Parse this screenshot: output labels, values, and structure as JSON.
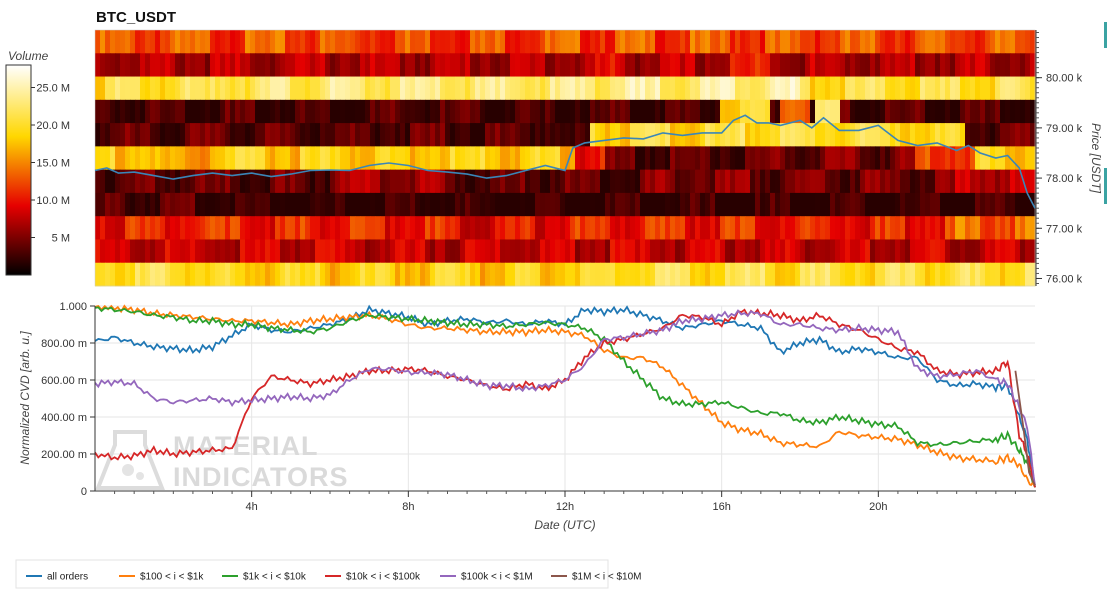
{
  "title": "BTC_USDT",
  "colors": {
    "grid": "#e6e6e6",
    "axis": "#333333",
    "price_line": "#3a86b8",
    "watermark": "#d9d9d9"
  },
  "watermark": {
    "line1": "MATERIAL",
    "line2": "INDICATORS"
  },
  "chart_data": [
    {
      "type": "heatmap",
      "title": "BTC_USDT",
      "colorbar": {
        "label": "Volume",
        "range": [
          0,
          28000000
        ],
        "ticks": [
          "5 M",
          "10.0 M",
          "15.0 M",
          "20.0 M",
          "25.0 M"
        ],
        "tick_values": [
          5000000,
          10000000,
          15000000,
          20000000,
          25000000
        ]
      },
      "y_right": {
        "label": "Price [USDT]",
        "range": [
          75850,
          80950
        ],
        "ticks": [
          "76.00 k",
          "77.00 k",
          "78.00 k",
          "79.00 k",
          "80.00 k"
        ],
        "tick_values": [
          76000,
          77000,
          78000,
          79000,
          80000
        ]
      },
      "x_range_hours": [
        0,
        24
      ],
      "rows": [
        {
          "price": 80800,
          "base": 14,
          "segments": [
            [
              0,
              24,
              14
            ]
          ]
        },
        {
          "price": 80500,
          "base": 8,
          "segments": [
            [
              12.8,
              13.5,
              10
            ],
            [
              16.2,
              17.5,
              11
            ]
          ]
        },
        {
          "price": 80000,
          "base": 22,
          "segments": [
            [
              3,
              12,
              24
            ],
            [
              12,
              16,
              25
            ],
            [
              16,
              18,
              26
            ]
          ]
        },
        {
          "price": 79500,
          "base": 3,
          "segments": [
            [
              11,
              12.3,
              2
            ],
            [
              16,
              17.2,
              20
            ],
            [
              17.5,
              18.2,
              16
            ],
            [
              18.4,
              19,
              22
            ]
          ]
        },
        {
          "price": 79000,
          "base": 4,
          "segments": [
            [
              11.8,
              12.6,
              2
            ],
            [
              12.6,
              16,
              21
            ],
            [
              16,
              21,
              22
            ],
            [
              21,
              22.2,
              20
            ]
          ]
        },
        {
          "price": 78500,
          "base": 20,
          "segments": [
            [
              1.5,
              3,
              17
            ],
            [
              12.3,
              13,
              12
            ],
            [
              13,
              17,
              4
            ],
            [
              17,
              21,
              5
            ],
            [
              21,
              22.5,
              14
            ]
          ]
        },
        {
          "price": 78000,
          "base": 4,
          "segments": [
            [
              6,
              9,
              7
            ],
            [
              12.5,
              14,
              3
            ],
            [
              14,
              17,
              6
            ],
            [
              17,
              22,
              5
            ],
            [
              22,
              24,
              9
            ]
          ]
        },
        {
          "price": 77500,
          "base": 2,
          "segments": [
            [
              0,
              4,
              3
            ],
            [
              11,
              12.5,
              1
            ],
            [
              12.5,
              18,
              2
            ]
          ]
        },
        {
          "price": 77000,
          "base": 12,
          "segments": [
            [
              9,
              12,
              11
            ],
            [
              22,
              24,
              15
            ]
          ]
        },
        {
          "price": 76500,
          "base": 9,
          "segments": [
            [
              0,
              24,
              9
            ]
          ]
        },
        {
          "price": 76000,
          "base": 18,
          "segments": [
            [
              0,
              3,
              22
            ],
            [
              3,
              12,
              20
            ],
            [
              12,
              24,
              22
            ]
          ]
        }
      ],
      "series": [
        {
          "x": [
            0,
            0.3,
            0.6,
            1,
            1.5,
            2,
            2.5,
            3,
            3.5,
            4,
            4.5,
            5,
            5.5,
            6,
            6.5,
            7,
            7.5,
            8,
            8.5,
            9,
            9.5,
            10,
            10.5,
            11,
            11.5,
            12,
            12.2,
            12.5,
            13,
            13.5,
            14,
            14.5,
            15,
            15.5,
            16,
            16.3,
            16.6,
            16.9,
            17.2,
            17.5,
            18,
            18.3,
            18.6,
            19,
            19.5,
            20,
            20.5,
            21,
            21.5,
            22,
            22.3,
            22.6,
            23,
            23.3,
            23.6,
            23.8,
            24
          ],
          "y": [
            78150,
            78200,
            78100,
            78120,
            78050,
            77980,
            78050,
            78100,
            78050,
            78100,
            78030,
            78080,
            78150,
            78160,
            78150,
            78250,
            78300,
            78250,
            78150,
            78120,
            78080,
            78000,
            78050,
            78150,
            78250,
            78150,
            78600,
            78700,
            78750,
            78800,
            78780,
            78900,
            78850,
            78900,
            78900,
            79150,
            79250,
            79100,
            79100,
            79050,
            79150,
            79000,
            79200,
            78950,
            78950,
            79050,
            78750,
            78650,
            78700,
            78550,
            78650,
            78500,
            78400,
            78450,
            78200,
            77700,
            77400
          ],
          "color": "#3a86b8"
        }
      ]
    },
    {
      "type": "line",
      "xlabel": "Date (UTC)",
      "ylabel": "Normalized CVD [arb. u.]",
      "x_range_hours": [
        0,
        24
      ],
      "xticks": [
        {
          "value": 4,
          "label": "4h"
        },
        {
          "value": 8,
          "label": "8h"
        },
        {
          "value": 12,
          "label": "12h"
        },
        {
          "value": 16,
          "label": "16h"
        },
        {
          "value": 20,
          "label": "20h"
        }
      ],
      "ylim": [
        0,
        1
      ],
      "yticks": [
        {
          "value": 0,
          "label": "0"
        },
        {
          "value": 0.2,
          "label": "200.00 m"
        },
        {
          "value": 0.4,
          "label": "400.00 m"
        },
        {
          "value": 0.6,
          "label": "600.00 m"
        },
        {
          "value": 0.8,
          "label": "800.00 m"
        },
        {
          "value": 1,
          "label": "1.000"
        }
      ],
      "legend_position": "bottom-left",
      "series": [
        {
          "name": "all orders",
          "color": "#1f77b4",
          "x": [
            0,
            0.5,
            1,
            1.5,
            2,
            2.5,
            3,
            3.5,
            4,
            4.5,
            5,
            5.5,
            6,
            6.5,
            7,
            7.5,
            8,
            8.5,
            9,
            9.5,
            10,
            10.5,
            11,
            11.5,
            12,
            12.5,
            13,
            13.5,
            14,
            14.5,
            15,
            15.5,
            16,
            16.5,
            17,
            17.5,
            18,
            18.5,
            19,
            19.5,
            20,
            20.5,
            21,
            21.5,
            22,
            22.5,
            23,
            23.3,
            23.6,
            23.8,
            24
          ],
          "y": [
            0.81,
            0.83,
            0.8,
            0.78,
            0.77,
            0.76,
            0.78,
            0.84,
            0.9,
            0.87,
            0.86,
            0.88,
            0.9,
            0.93,
            0.98,
            0.96,
            0.94,
            0.9,
            0.92,
            0.93,
            0.91,
            0.92,
            0.9,
            0.92,
            0.9,
            0.98,
            0.97,
            0.98,
            0.95,
            0.92,
            0.88,
            0.9,
            0.92,
            0.9,
            0.88,
            0.75,
            0.8,
            0.82,
            0.75,
            0.77,
            0.75,
            0.72,
            0.72,
            0.6,
            0.57,
            0.58,
            0.56,
            0.57,
            0.4,
            0.28,
            0.02
          ]
        },
        {
          "name": "$100 < i < $1k",
          "color": "#ff7f0e",
          "x": [
            0,
            0.5,
            1,
            1.5,
            2,
            2.5,
            3,
            3.5,
            4,
            4.5,
            5,
            5.5,
            6,
            6.5,
            7,
            7.5,
            8,
            8.5,
            9,
            9.5,
            10,
            10.5,
            11,
            11.5,
            12,
            12.5,
            13,
            13.5,
            14,
            14.5,
            15,
            15.5,
            16,
            16.5,
            17,
            17.5,
            18,
            18.5,
            19,
            19.5,
            20,
            20.5,
            21,
            21.5,
            22,
            22.5,
            23,
            23.3,
            23.6,
            23.8,
            24
          ],
          "y": [
            1.0,
            0.99,
            0.98,
            0.96,
            0.95,
            0.94,
            0.93,
            0.92,
            0.92,
            0.91,
            0.9,
            0.92,
            0.93,
            0.94,
            0.95,
            0.93,
            0.9,
            0.88,
            0.88,
            0.87,
            0.86,
            0.86,
            0.86,
            0.87,
            0.86,
            0.84,
            0.76,
            0.72,
            0.72,
            0.67,
            0.57,
            0.47,
            0.37,
            0.33,
            0.31,
            0.26,
            0.25,
            0.24,
            0.32,
            0.3,
            0.29,
            0.28,
            0.25,
            0.21,
            0.18,
            0.17,
            0.16,
            0.18,
            0.14,
            0.06,
            0.02
          ]
        },
        {
          "name": "$1k < i < $10k",
          "color": "#2ca02c",
          "x": [
            0,
            0.5,
            1,
            1.5,
            2,
            2.5,
            3,
            3.5,
            4,
            4.5,
            5,
            5.5,
            6,
            6.5,
            7,
            7.5,
            8,
            8.5,
            9,
            9.5,
            10,
            10.5,
            11,
            11.5,
            12,
            12.5,
            13,
            13.5,
            14,
            14.5,
            15,
            15.5,
            16,
            16.5,
            17,
            17.5,
            18,
            18.5,
            19,
            19.5,
            20,
            20.5,
            21,
            21.5,
            22,
            22.5,
            23,
            23.3,
            23.6,
            23.8,
            24
          ],
          "y": [
            0.99,
            0.98,
            0.97,
            0.95,
            0.94,
            0.92,
            0.92,
            0.9,
            0.9,
            0.88,
            0.87,
            0.86,
            0.88,
            0.92,
            0.95,
            0.94,
            0.93,
            0.92,
            0.91,
            0.9,
            0.9,
            0.89,
            0.9,
            0.91,
            0.9,
            0.88,
            0.82,
            0.7,
            0.6,
            0.5,
            0.47,
            0.47,
            0.48,
            0.45,
            0.42,
            0.42,
            0.38,
            0.37,
            0.4,
            0.38,
            0.36,
            0.35,
            0.26,
            0.25,
            0.26,
            0.27,
            0.28,
            0.3,
            0.22,
            0.15,
            0.02
          ]
        },
        {
          "name": "$10k < i < $100k",
          "color": "#d62728",
          "x": [
            0,
            0.5,
            1,
            1.5,
            2,
            2.5,
            3,
            3.5,
            4,
            4.5,
            5,
            5.5,
            6,
            6.5,
            7,
            7.5,
            8,
            8.5,
            9,
            9.5,
            10,
            10.5,
            11,
            11.5,
            12,
            12.5,
            13,
            13.5,
            14,
            14.5,
            15,
            15.5,
            16,
            16.5,
            17,
            17.5,
            18,
            18.5,
            19,
            19.5,
            20,
            20.5,
            21,
            21.5,
            22,
            22.5,
            23,
            23.3,
            23.6,
            23.8,
            24
          ],
          "y": [
            0.2,
            0.18,
            0.19,
            0.22,
            0.2,
            0.21,
            0.22,
            0.23,
            0.5,
            0.62,
            0.6,
            0.58,
            0.6,
            0.62,
            0.65,
            0.65,
            0.66,
            0.65,
            0.62,
            0.6,
            0.57,
            0.55,
            0.58,
            0.55,
            0.6,
            0.72,
            0.8,
            0.82,
            0.85,
            0.88,
            0.95,
            0.94,
            0.9,
            0.97,
            0.96,
            0.95,
            0.92,
            0.95,
            0.9,
            0.87,
            0.82,
            0.77,
            0.75,
            0.65,
            0.63,
            0.64,
            0.65,
            0.7,
            0.3,
            0.2,
            0.02
          ]
        },
        {
          "name": "$100k < i < $1M",
          "color": "#9467bd",
          "x": [
            0,
            0.5,
            1,
            1.5,
            2,
            2.5,
            3,
            3.5,
            4,
            4.5,
            5,
            5.5,
            6,
            6.5,
            7,
            7.5,
            8,
            8.5,
            9,
            9.5,
            10,
            10.5,
            11,
            11.5,
            12,
            12.5,
            13,
            13.5,
            14,
            14.5,
            15,
            15.5,
            16,
            16.5,
            17,
            17.5,
            18,
            18.5,
            19,
            19.5,
            20,
            20.5,
            21,
            21.5,
            22,
            22.5,
            23,
            23.3,
            23.6,
            23.8,
            24
          ],
          "y": [
            0.58,
            0.59,
            0.58,
            0.5,
            0.48,
            0.49,
            0.5,
            0.48,
            0.49,
            0.5,
            0.51,
            0.5,
            0.52,
            0.6,
            0.66,
            0.66,
            0.64,
            0.64,
            0.63,
            0.6,
            0.57,
            0.57,
            0.55,
            0.57,
            0.6,
            0.68,
            0.82,
            0.83,
            0.85,
            0.87,
            0.92,
            0.93,
            0.95,
            0.96,
            0.96,
            0.9,
            0.9,
            0.88,
            0.87,
            0.88,
            0.87,
            0.86,
            0.66,
            0.62,
            0.63,
            0.65,
            0.6,
            0.58,
            0.45,
            0.35,
            0.03
          ]
        },
        {
          "name": "$1M < i < $10M",
          "color": "#8c564b",
          "x": [
            23.5,
            23.7,
            23.85,
            24
          ],
          "y": [
            0.65,
            0.35,
            0.1,
            0.03
          ]
        }
      ]
    }
  ]
}
